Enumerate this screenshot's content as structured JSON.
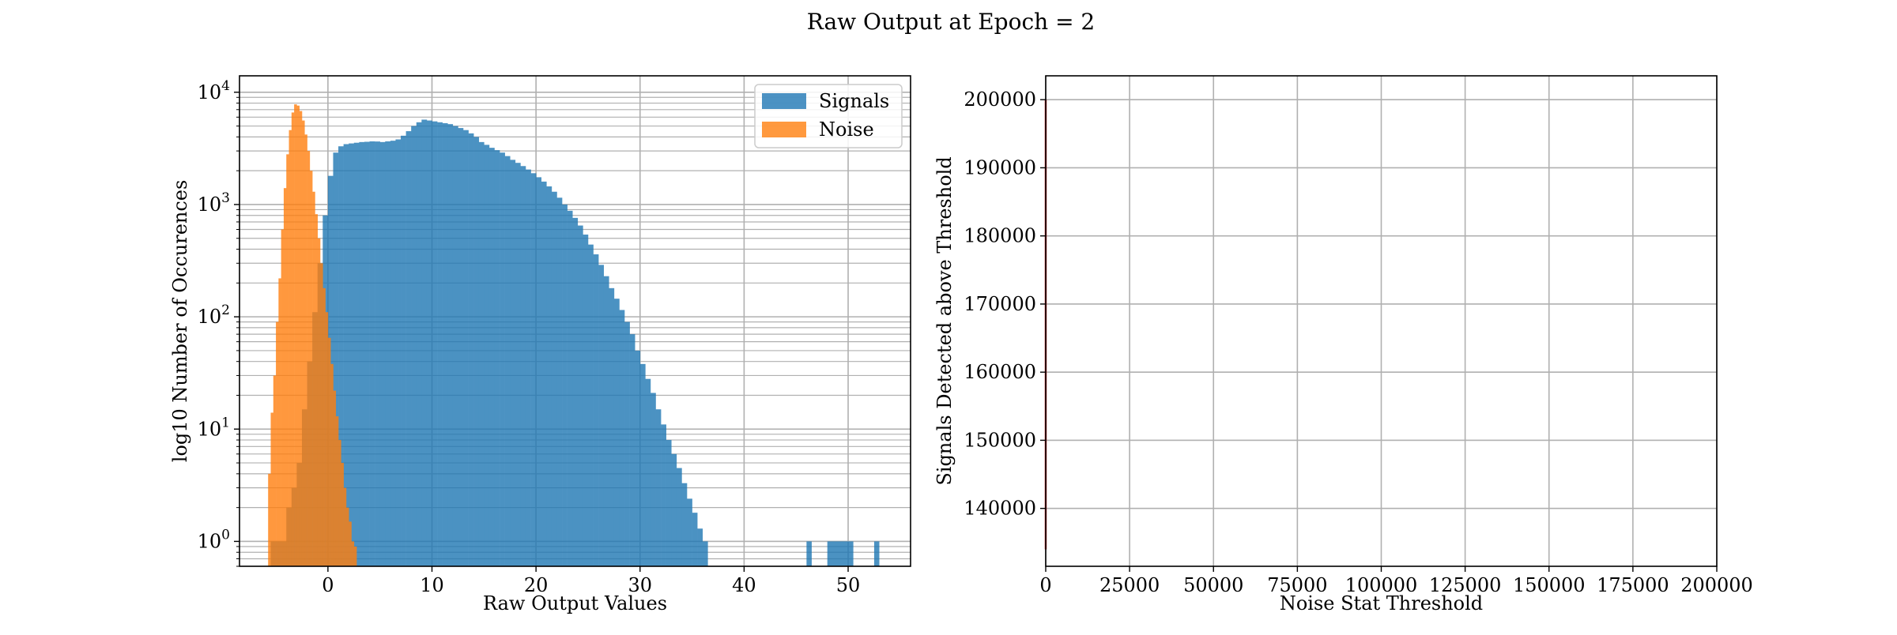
{
  "figure": {
    "title": "Raw Output at Epoch = 2"
  },
  "chart_data": [
    {
      "type": "histogram",
      "xlabel": "Raw Output Values",
      "ylabel": "log10 Number of Occurences",
      "y_scale": "log",
      "xlim": [
        -8.5,
        56
      ],
      "ylim": [
        0.6,
        14000
      ],
      "xticks": [
        0,
        10,
        20,
        30,
        40,
        50
      ],
      "xtick_labels": [
        "0",
        "10",
        "20",
        "30",
        "40",
        "50"
      ],
      "yticks": [
        1,
        10,
        100,
        1000,
        10000
      ],
      "ytick_labels": [
        {
          "base": "10",
          "exp": "0"
        },
        {
          "base": "10",
          "exp": "1"
        },
        {
          "base": "10",
          "exp": "2"
        },
        {
          "base": "10",
          "exp": "3"
        },
        {
          "base": "10",
          "exp": "4"
        }
      ],
      "grid": true,
      "legend_position": "top-right",
      "series": [
        {
          "name": "Signals",
          "color": "#1f77b4",
          "alpha": 0.8,
          "bin_start": -5.5,
          "bin_width": 0.5,
          "counts": [
            1,
            1,
            1,
            2,
            3,
            5,
            15,
            40,
            110,
            300,
            800,
            1800,
            2900,
            3300,
            3450,
            3500,
            3550,
            3600,
            3620,
            3650,
            3640,
            3600,
            3650,
            3700,
            3800,
            4100,
            4500,
            5000,
            5400,
            5700,
            5600,
            5500,
            5400,
            5300,
            5200,
            5000,
            4800,
            4600,
            4300,
            4000,
            3600,
            3400,
            3200,
            3050,
            2900,
            2700,
            2500,
            2350,
            2200,
            2050,
            1900,
            1750,
            1600,
            1450,
            1300,
            1150,
            1000,
            880,
            760,
            650,
            540,
            440,
            360,
            290,
            230,
            180,
            145,
            115,
            90,
            70,
            50,
            38,
            28,
            21,
            15,
            11,
            8,
            6,
            4.5,
            3.3,
            2.4,
            1.8,
            1.3,
            1
          ],
          "far_bins": [
            {
              "start": 46.0,
              "width": 0.5,
              "count": 1
            },
            {
              "start": 48.0,
              "width": 2.5,
              "count": 1
            },
            {
              "start": 52.5,
              "width": 0.5,
              "count": 1
            }
          ]
        },
        {
          "name": "Noise",
          "color": "#ff7f0e",
          "alpha": 0.8,
          "bin_start": -5.75,
          "bin_width": 0.25,
          "counts": [
            4,
            14,
            30,
            90,
            220,
            600,
            1400,
            2800,
            4600,
            6600,
            7800,
            7600,
            6800,
            5600,
            4200,
            3000,
            2000,
            1300,
            820,
            500,
            300,
            180,
            110,
            65,
            38,
            22,
            13,
            8,
            5,
            3,
            2,
            1.5,
            1,
            0.9
          ]
        }
      ]
    },
    {
      "type": "line",
      "xlabel": "Noise Stat Threshold",
      "ylabel": "Signals Detected above Threshold",
      "xlim": [
        0,
        200000
      ],
      "ylim": [
        131500,
        203500
      ],
      "xticks": [
        0,
        25000,
        50000,
        75000,
        100000,
        125000,
        150000,
        175000,
        200000
      ],
      "xtick_labels": [
        "0",
        "25000",
        "50000",
        "75000",
        "100000",
        "125000",
        "150000",
        "175000",
        "200000"
      ],
      "yticks": [
        140000,
        150000,
        160000,
        170000,
        180000,
        190000,
        200000
      ],
      "ytick_labels": [
        "140000",
        "150000",
        "160000",
        "170000",
        "180000",
        "190000",
        "200000"
      ],
      "grid": true,
      "series": [
        {
          "color": "#d62728",
          "x": [
            0,
            0
          ],
          "y": [
            134000,
            200000
          ]
        }
      ]
    }
  ]
}
